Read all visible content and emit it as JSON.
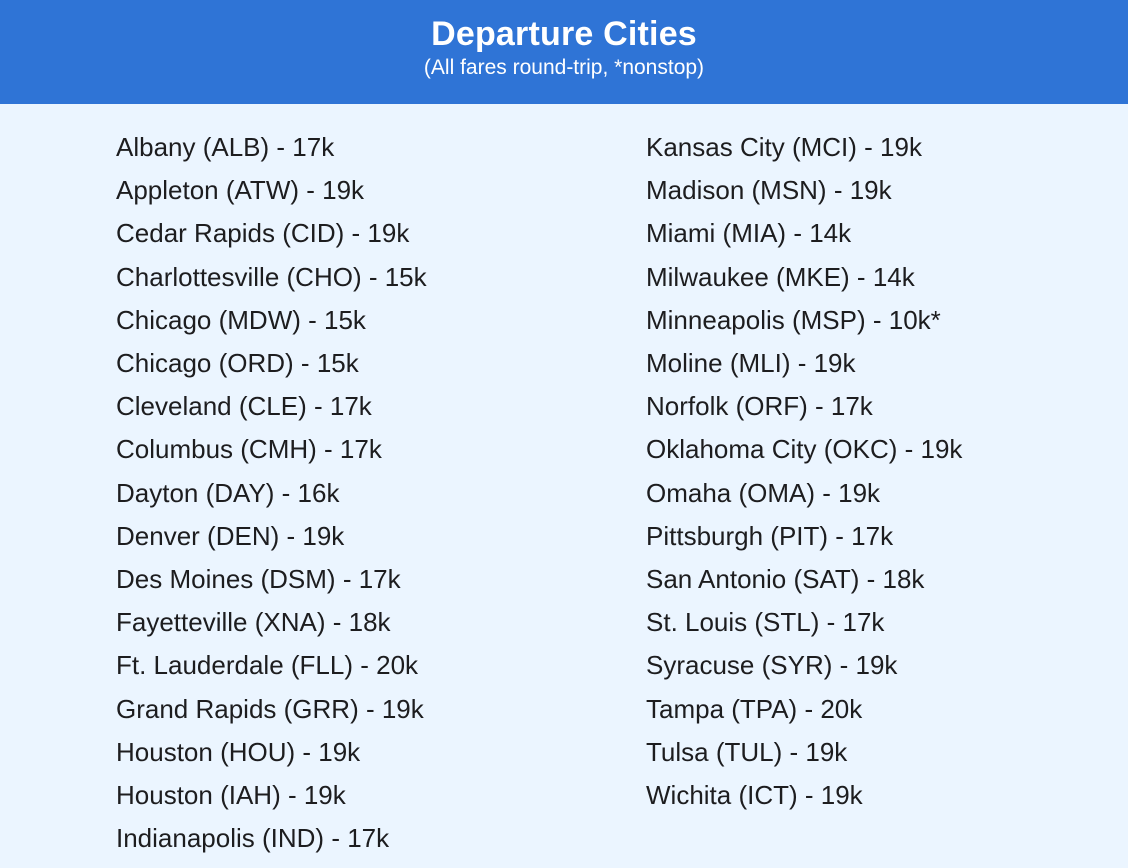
{
  "header": {
    "title": "Departure Cities",
    "subtitle": "(All fares round-trip, *nonstop)"
  },
  "left_column": [
    "Albany (ALB) - 17k",
    "Appleton (ATW) - 19k",
    "Cedar Rapids (CID) - 19k",
    "Charlottesville (CHO) - 15k",
    "Chicago (MDW) - 15k",
    "Chicago (ORD) - 15k",
    "Cleveland (CLE) - 17k",
    "Columbus (CMH) - 17k",
    "Dayton (DAY) - 16k",
    "Denver (DEN) - 19k",
    "Des Moines (DSM) - 17k",
    "Fayetteville (XNA) - 18k",
    "Ft. Lauderdale (FLL) - 20k",
    "Grand Rapids (GRR) - 19k",
    "Houston (HOU) - 19k",
    "Houston (IAH) - 19k",
    "Indianapolis (IND) - 17k"
  ],
  "right_column": [
    "Kansas City (MCI) - 19k",
    "Madison (MSN) - 19k",
    "Miami (MIA) - 14k",
    "Milwaukee (MKE) - 14k",
    "Minneapolis (MSP) - 10k*",
    "Moline (MLI) - 19k",
    "Norfolk (ORF) - 17k",
    "Oklahoma City (OKC) - 19k",
    "Omaha (OMA) - 19k",
    "Pittsburgh (PIT) - 17k",
    "San Antonio (SAT) - 18k",
    "St. Louis (STL) - 17k",
    "Syracuse (SYR) - 19k",
    "Tampa (TPA) - 20k",
    "Tulsa (TUL) - 19k",
    "Wichita (ICT) - 19k"
  ],
  "colors": {
    "header_bg": "#2f74d6",
    "page_bg": "#ebf5ff",
    "text": "#1d1d1f"
  }
}
